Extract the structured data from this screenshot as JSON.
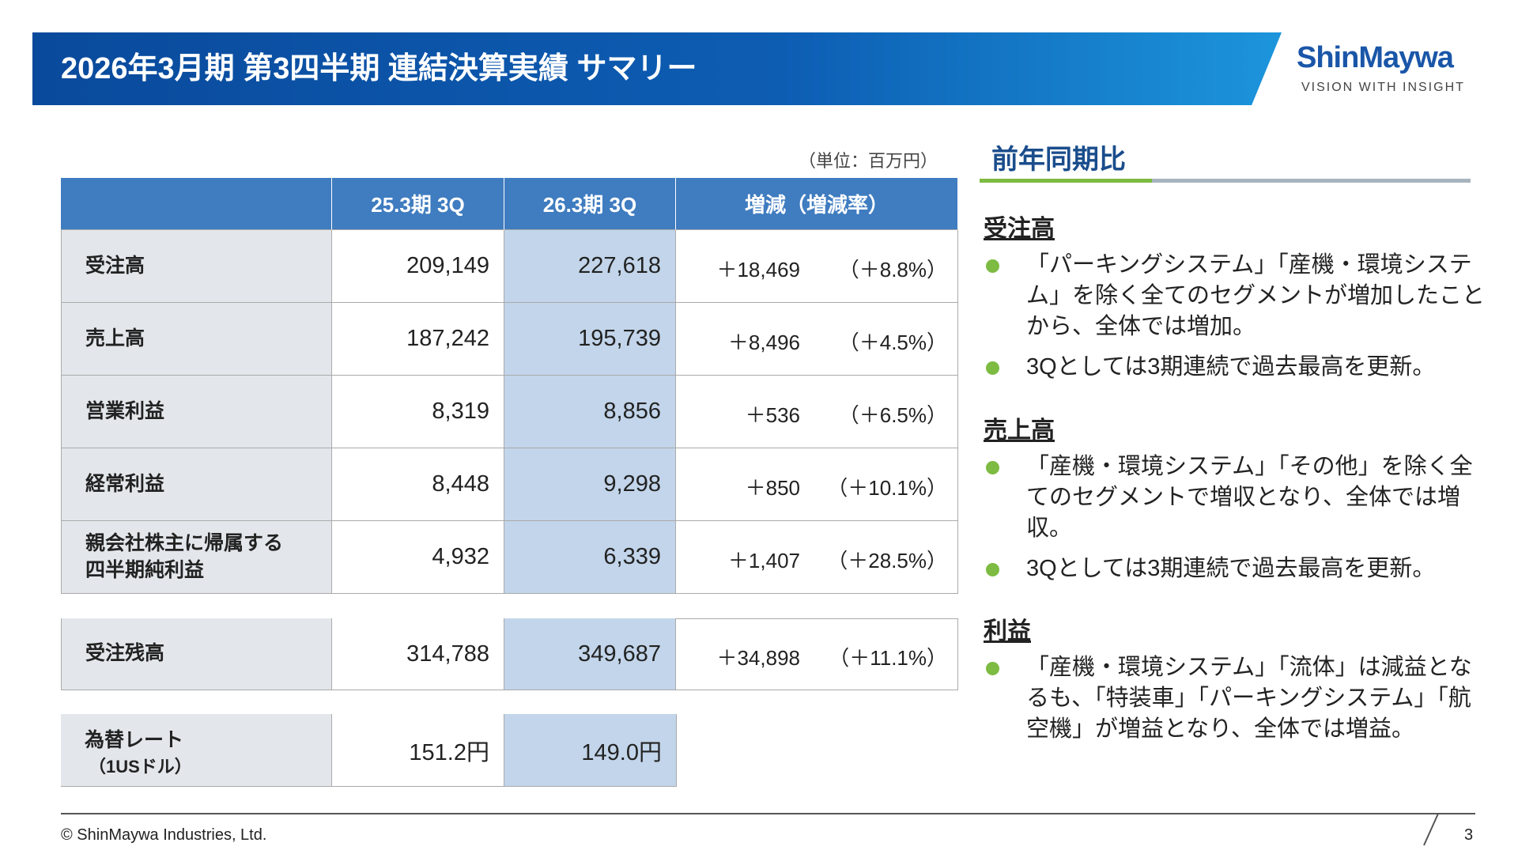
{
  "header": {
    "title": "2026年3月期 第3四半期 連結決算実績 サマリー",
    "logo": "ShinMaywa",
    "tagline": "VISION WITH INSIGHT"
  },
  "table": {
    "unit": "（単位：百万円）",
    "columns": [
      "25.3期 3Q",
      "26.3期 3Q",
      "増減（増減率）"
    ],
    "rows": [
      [
        "受注高",
        "209,149",
        "227,618",
        "＋18,469",
        "（＋8.8%）"
      ],
      [
        "売上高",
        "187,242",
        "195,739",
        "＋8,496",
        "（＋4.5%）"
      ],
      [
        "営業利益",
        "8,319",
        "8,856",
        "＋536",
        "（＋6.5%）"
      ],
      [
        "経常利益",
        "8,448",
        "9,298",
        "＋850",
        "（＋10.1%）"
      ],
      [
        "親会社株主に帰属する\n四半期純利益",
        "4,932",
        "6,339",
        "＋1,407",
        "（＋28.5%）"
      ]
    ],
    "backlog": [
      "受注残高",
      "314,788",
      "349,687",
      "＋34,898",
      "（＋11.1%）"
    ],
    "fx": {
      "label": "為替レート",
      "sublabel": "（1USドル）",
      "values": [
        "151.2円",
        "149.0円"
      ]
    }
  },
  "summary": {
    "title": "前年同期比",
    "sections": [
      {
        "heading": "受注高",
        "bullets": [
          "「パーキングシステム」「産機・環境システム」を除く全てのセグメントが増加したことから、全体では増加。",
          "3Qとしては3期連続で過去最高を更新。"
        ]
      },
      {
        "heading": "売上高",
        "bullets": [
          "「産機・環境システム」「その他」を除く全てのセグメントで増収となり、全体では増収。",
          "3Qとしては3期連続で過去最高を更新。"
        ]
      },
      {
        "heading": "利益",
        "bullets": [
          "「産機・環境システム」「流体」は減益となるも、「特装車」「パーキングシステム」「航空機」が増益となり、全体では増益。"
        ]
      }
    ]
  },
  "footer": {
    "copyright": "© ShinMaywa Industries, Ltd.",
    "page": "3"
  }
}
